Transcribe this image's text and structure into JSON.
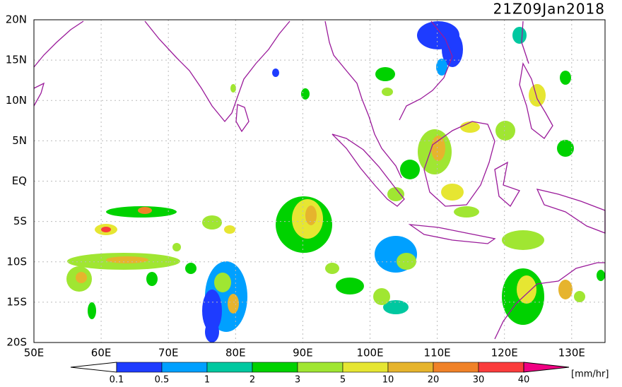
{
  "title": "21Z09Jan2018",
  "lat_labels": [
    "20N",
    "15N",
    "10N",
    "5N",
    "EQ",
    "5S",
    "10S",
    "15S",
    "20S"
  ],
  "lon_labels": [
    "50E",
    "60E",
    "70E",
    "80E",
    "90E",
    "100E",
    "110E",
    "120E",
    "130E"
  ],
  "colorbar": {
    "labels": [
      "0.1",
      "0.5",
      "1",
      "2",
      "3",
      "5",
      "10",
      "20",
      "30",
      "40"
    ],
    "unit": "[mm/hr]"
  }
}
